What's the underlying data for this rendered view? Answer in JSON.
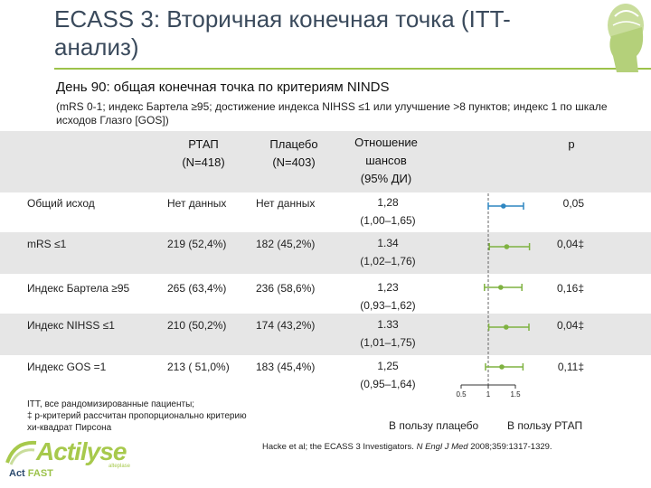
{
  "title": "ECASS 3: Вторичная конечная точка (ITT-анализ)",
  "subtitle": "День 90: общая конечная точка по критериям NINDS",
  "note": "(mRS 0-1; индекс Бартела ≥95; достижение индекса NIHSS ≤1 или улучшение >8 пунктов; индекс 1 по шкале исходов Глазго [GOS])",
  "table": {
    "headers": {
      "rtpa": "РТАП",
      "rtpa_n": "(N=418)",
      "placebo": "Плацебо",
      "placebo_n": "(N=403)",
      "or_1": "Отношение",
      "or_2": "шансов",
      "or_3": "(95% ДИ)",
      "p": "p"
    },
    "rows": [
      {
        "label": "Общий исход",
        "rtpa": "Нет данных",
        "placebo": "Нет данных",
        "or": "1,28",
        "ci": "(1,00–1,65)",
        "p": "0,05",
        "or_value": 1.28,
        "ci_low": 1.0,
        "ci_high": 1.65
      },
      {
        "label": "mRS ≤1",
        "rtpa": "219 (52,4%)",
        "placebo": "182 (45,2%)",
        "or": "1.34",
        "ci": "(1,02–1,76)",
        "p": "0,04‡",
        "or_value": 1.34,
        "ci_low": 1.02,
        "ci_high": 1.76
      },
      {
        "label": "Индекс Бартела ≥95",
        "rtpa": "265 (63,4%)",
        "placebo": "236 (58,6%)",
        "or": "1,23",
        "ci": "(0,93–1,62)",
        "p": "0,16‡",
        "or_value": 1.23,
        "ci_low": 0.93,
        "ci_high": 1.62
      },
      {
        "label": "Индекс NIHSS ≤1",
        "rtpa": "210 (50,2%)",
        "placebo": "174 (43,2%)",
        "or": "1.33",
        "ci": "(1,01–1,75)",
        "p": "0,04‡",
        "or_value": 1.33,
        "ci_low": 1.01,
        "ci_high": 1.75
      },
      {
        "label": "Индекс GOS =1",
        "rtpa": "213 ( 51,0%)",
        "placebo": "183 (45,4%)",
        "or": "1,25",
        "ci": "(0,95–1,64)",
        "p": "0,11‡",
        "or_value": 1.25,
        "ci_low": 0.95,
        "ci_high": 1.64
      }
    ]
  },
  "forest_axis": {
    "min": 0.5,
    "max": 1.5,
    "ticks": [
      "0.5",
      "1",
      "1.5"
    ],
    "reference": 1
  },
  "legend": {
    "left": "В пользу плацебо",
    "right": "В пользу РТАП"
  },
  "footnote_1": "ITT, все рандомизированные пациенты;",
  "footnote_2": "‡ р-критерий рассчитан пропорционально  критерию",
  "footnote_3": "хи-квадрат Пирсона",
  "citation_1": "Hacke et al; the ECASS 3 Investigators. ",
  "citation_journal": "N Engl J Med",
  "citation_2": " 2008;359:1317-1329.",
  "logo": {
    "brand": "Actilyse",
    "sub": "alteplase",
    "tag_1": "Act",
    "tag_2": " FAST"
  },
  "colors": {
    "accent_green": "#9cc24a",
    "band_gray": "#e6e6e6",
    "marker_blue": "#2e86c1",
    "marker_green": "#7fb241",
    "title_color": "#3a4a5c"
  }
}
